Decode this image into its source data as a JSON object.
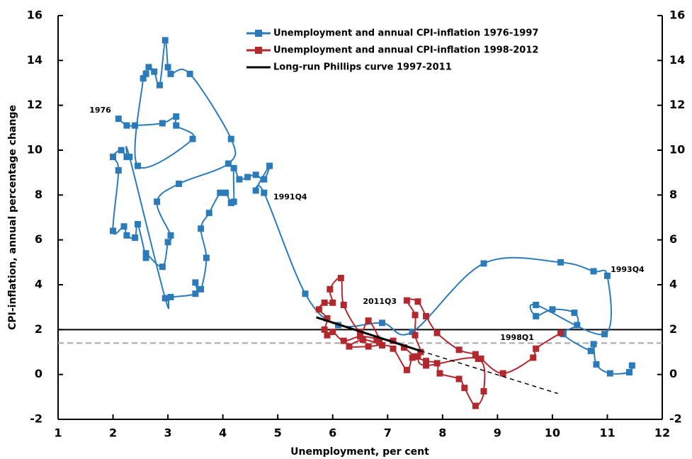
{
  "chart_data": {
    "type": "line",
    "xlabel": "Unemployment, per cent",
    "ylabel": "CPI-inflation, annual percentage change",
    "xlim": [
      1,
      12
    ],
    "xticks": [
      1,
      2,
      3,
      4,
      5,
      6,
      7,
      8,
      9,
      10,
      11,
      12
    ],
    "ylim": [
      -2,
      16
    ],
    "yticks": [
      -2,
      0,
      2,
      4,
      6,
      8,
      10,
      12,
      14,
      16
    ],
    "y2lim": [
      -2,
      16
    ],
    "y2ticks": [
      -2,
      0,
      2,
      4,
      6,
      8,
      10,
      12,
      14,
      16
    ],
    "series": [
      {
        "name": "Unemployment and annual CPI-inflation 1976-1997",
        "color": "#2b7bba",
        "marker": "square",
        "x": [
          2.1,
          2.25,
          2.4,
          2.9,
          3.15,
          3.15,
          3.45,
          2.45,
          2.55,
          2.6,
          2.65,
          2.75,
          2.85,
          2.95,
          3.0,
          3.05,
          3.4,
          4.15,
          4.1,
          3.2,
          2.8,
          3.05,
          3.0,
          2.9,
          2.6,
          2.6,
          2.45,
          2.4,
          2.25,
          2.2,
          2.0,
          2.1,
          2.0,
          2.15,
          2.25,
          2.3,
          2.95,
          3.05,
          3.5,
          3.5,
          3.6,
          3.7,
          3.6,
          3.75,
          3.95,
          4.05,
          4.15,
          4.2,
          4.2,
          4.3,
          4.45,
          4.6,
          4.75,
          4.85,
          4.6,
          4.75,
          5.5,
          6.1,
          6.9,
          7.45,
          8.75,
          10.15,
          10.75,
          11.0,
          10.95,
          9.7,
          9.7,
          10.0,
          10.4,
          10.45,
          10.2,
          10.7,
          10.75,
          10.8,
          11.05,
          11.4,
          11.45
        ],
        "values": [
          11.4,
          11.1,
          11.1,
          11.2,
          11.5,
          11.1,
          10.5,
          9.3,
          13.2,
          13.4,
          13.7,
          13.5,
          12.9,
          14.9,
          13.7,
          13.4,
          13.4,
          10.5,
          9.4,
          8.5,
          7.7,
          6.2,
          5.9,
          4.8,
          5.4,
          5.2,
          6.7,
          6.1,
          6.2,
          6.6,
          6.4,
          9.1,
          9.7,
          10.0,
          9.7,
          9.7,
          3.4,
          3.45,
          3.6,
          4.1,
          3.8,
          5.2,
          6.5,
          7.2,
          8.1,
          8.1,
          7.65,
          7.7,
          9.2,
          8.7,
          8.8,
          8.9,
          8.7,
          9.3,
          8.2,
          8.1,
          3.6,
          2.2,
          2.3,
          1.9,
          4.95,
          5.0,
          4.6,
          4.4,
          1.8,
          3.1,
          2.6,
          2.9,
          2.75,
          2.2,
          1.8,
          1.05,
          1.35,
          0.45,
          0.05,
          0.1,
          0.4
        ]
      },
      {
        "name": "Unemployment and annual CPI-inflation 1998-2012",
        "color": "#b2282e",
        "marker": "square",
        "x": [
          10.15,
          9.7,
          9.65,
          9.1,
          8.7,
          8.6,
          8.3,
          7.9,
          7.7,
          7.55,
          7.35,
          7.5,
          7.5,
          7.6,
          7.45,
          7.35,
          7.1,
          6.9,
          6.65,
          6.3,
          6.55,
          6.85,
          6.65,
          6.5,
          6.2,
          6.15,
          5.95,
          6.0,
          5.85,
          5.75,
          5.9,
          5.85,
          5.9,
          6.0,
          6.2,
          6.5,
          6.8,
          7.1,
          7.3,
          7.5,
          7.7,
          7.9,
          7.95,
          8.3,
          8.4,
          8.6,
          8.75,
          8.65,
          7.7,
          7.55,
          7.6
        ],
        "values": [
          1.85,
          1.15,
          0.75,
          0.05,
          0.7,
          0.9,
          1.1,
          1.85,
          2.6,
          3.25,
          3.3,
          2.65,
          1.75,
          1.0,
          0.75,
          0.2,
          1.15,
          1.3,
          1.25,
          1.25,
          1.55,
          1.45,
          2.4,
          1.9,
          3.1,
          4.3,
          3.8,
          3.2,
          3.2,
          2.9,
          2.5,
          2.0,
          1.75,
          1.9,
          1.5,
          1.7,
          1.6,
          1.5,
          1.2,
          0.8,
          0.6,
          0.5,
          0.05,
          -0.2,
          -0.6,
          -1.4,
          -0.75,
          0.7,
          0.4,
          0.8,
          1.0
        ]
      },
      {
        "name": "Long-run Phillips curve 1997-2011",
        "color": "#000000",
        "marker": "none",
        "x": [
          5.7,
          7.6
        ],
        "values": [
          2.55,
          1.05
        ],
        "extension": {
          "x": [
            7.6,
            10.1
          ],
          "values": [
            1.05,
            -0.85
          ],
          "dashed": true
        }
      }
    ],
    "hlines": [
      {
        "value": 2,
        "color": "#000000",
        "dashed": false
      },
      {
        "value": 1.4,
        "color": "#a6a6a6",
        "dashed": true
      }
    ],
    "annotations": [
      {
        "text": "1976",
        "x": 1.57,
        "y": 11.77
      },
      {
        "text": "1991Q4",
        "x": 4.92,
        "y": 7.9
      },
      {
        "text": "1993Q4",
        "x": 11.06,
        "y": 4.66
      },
      {
        "text": "2011Q3",
        "x": 6.55,
        "y": 3.24
      },
      {
        "text": "1998Q1",
        "x": 9.05,
        "y": 1.63
      }
    ],
    "legend": "top-center"
  }
}
